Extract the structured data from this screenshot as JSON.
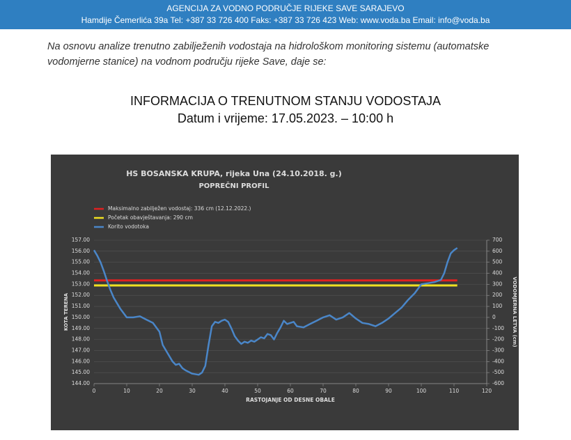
{
  "header": {
    "title": "AGENCIJA ZA VODNO PODRUČJE RIJEKE SAVE SARAJEVO",
    "contact": "Hamdije Čemerlića 39a Tel: +387 33 726 400 Faks: +387 33 726 423 Web: www.voda.ba Email: info@voda.ba"
  },
  "intro": "Na osnovu analize trenutno zabilježenih vodostaja na hidrološkom monitoring sistemu  (automatske vodomjerne stanice) na vodnom području rijeke Save, daje se:",
  "heading": {
    "title": "INFORMACIJA O TRENUTNOM STANJU VODOSTAJA",
    "datetime": "Datum i vrijeme: 17.05.2023. – 10:00 h"
  },
  "chart_data": {
    "type": "line",
    "title": "HS BOSANSKA KRUPA, rijeka Una (24.10.2018. g.)",
    "subtitle": "POPREČNI PROFIL",
    "x_label": "RASTOJANJE OD DESNE OBALE",
    "y_label": "KOTA TERENA",
    "y2_label": "VODOMJERNA LETVA (cm)",
    "xlim": [
      0,
      120
    ],
    "xticks": [
      0,
      10,
      20,
      30,
      40,
      50,
      60,
      70,
      80,
      90,
      100,
      110,
      120
    ],
    "ylim": [
      144,
      157
    ],
    "yticks": [
      {
        "value": 144,
        "label": "144.00"
      },
      {
        "value": 145,
        "label": "145.00"
      },
      {
        "value": 146,
        "label": "146.00"
      },
      {
        "value": 147,
        "label": "147.00"
      },
      {
        "value": 148,
        "label": "148.00"
      },
      {
        "value": 149,
        "label": "149.00"
      },
      {
        "value": 150,
        "label": "150.00"
      },
      {
        "value": 151,
        "label": "151.00"
      },
      {
        "value": 152,
        "label": "152.00"
      },
      {
        "value": 153,
        "label": "153.00"
      },
      {
        "value": 154,
        "label": "154.00"
      },
      {
        "value": 155,
        "label": "155.00"
      },
      {
        "value": 156,
        "label": "156.00"
      },
      {
        "value": 157,
        "label": "157.00"
      }
    ],
    "y2lim": [
      -600,
      700
    ],
    "y2ticks": [
      -600,
      -500,
      -400,
      -300,
      -200,
      -100,
      0,
      100,
      200,
      300,
      400,
      500,
      600,
      700
    ],
    "grid": true,
    "series": [
      {
        "name": "Maksimalno zabilježen vodostaj: 336 cm (12.12.2022.)",
        "color": "#e02020",
        "axis": "y2",
        "x": [
          0,
          111
        ],
        "values": [
          336,
          336
        ]
      },
      {
        "name": "Početak obavještavanja: 290 cm",
        "color": "#f0e020",
        "axis": "y2",
        "x": [
          0,
          111
        ],
        "values": [
          290,
          290
        ]
      },
      {
        "name": "Korito vodotoka",
        "color": "#4a86c8",
        "x": [
          0,
          1,
          2,
          3,
          4,
          5,
          6,
          8,
          10,
          12,
          14,
          16,
          18,
          20,
          21,
          22,
          23,
          24,
          25,
          26,
          27,
          28,
          30,
          32,
          33,
          34,
          35,
          36,
          37,
          38,
          39,
          40,
          41,
          42,
          43,
          44,
          45,
          46,
          47,
          48,
          49,
          50,
          51,
          52,
          53,
          54,
          55,
          56,
          57,
          58,
          59,
          60,
          61,
          62,
          64,
          66,
          68,
          70,
          72,
          74,
          76,
          78,
          80,
          82,
          84,
          86,
          88,
          90,
          92,
          94,
          96,
          98,
          100,
          102,
          104,
          106,
          107,
          108,
          109,
          110,
          111
        ],
        "values": [
          156.1,
          155.6,
          155.0,
          154.2,
          153.3,
          152.5,
          151.8,
          150.8,
          150.0,
          150.0,
          150.1,
          149.8,
          149.5,
          148.7,
          147.5,
          147.0,
          146.5,
          146.0,
          145.7,
          145.8,
          145.4,
          145.2,
          144.9,
          144.8,
          145.0,
          145.6,
          147.5,
          149.2,
          149.6,
          149.5,
          149.7,
          149.8,
          149.6,
          149.0,
          148.3,
          147.9,
          147.6,
          147.8,
          147.7,
          147.9,
          147.8,
          148.0,
          148.2,
          148.1,
          148.5,
          148.4,
          148.0,
          148.6,
          149.1,
          149.7,
          149.4,
          149.5,
          149.6,
          149.2,
          149.1,
          149.4,
          149.7,
          150.0,
          150.2,
          149.8,
          150.0,
          150.4,
          149.9,
          149.5,
          149.4,
          149.2,
          149.5,
          149.9,
          150.4,
          150.9,
          151.6,
          152.2,
          153.0,
          153.1,
          153.2,
          153.4,
          154.0,
          155.0,
          155.8,
          156.1,
          156.3
        ]
      }
    ]
  }
}
